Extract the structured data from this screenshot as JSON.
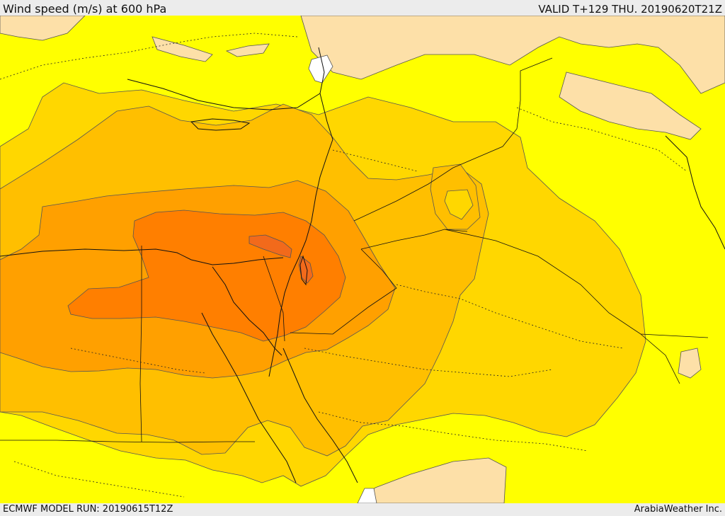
{
  "header": {
    "title": "Wind speed (m/s) at 600 hPa",
    "valid": "VALID T+129 THU. 20190620T21Z"
  },
  "footer": {
    "model_run": "ECMWF MODEL RUN: 20190615T12Z",
    "credit": "ArabiaWeather Inc."
  },
  "colors": {
    "level_0_5": "#fde0a8",
    "level_5_10": "#ffff00",
    "level_10_15": "#ffd700",
    "level_15_20": "#ffbf00",
    "level_20_25": "#ffa000",
    "level_25_30": "#ff7f00",
    "level_30_35": "#f26a1b",
    "background_white": "#ffffff"
  }
}
